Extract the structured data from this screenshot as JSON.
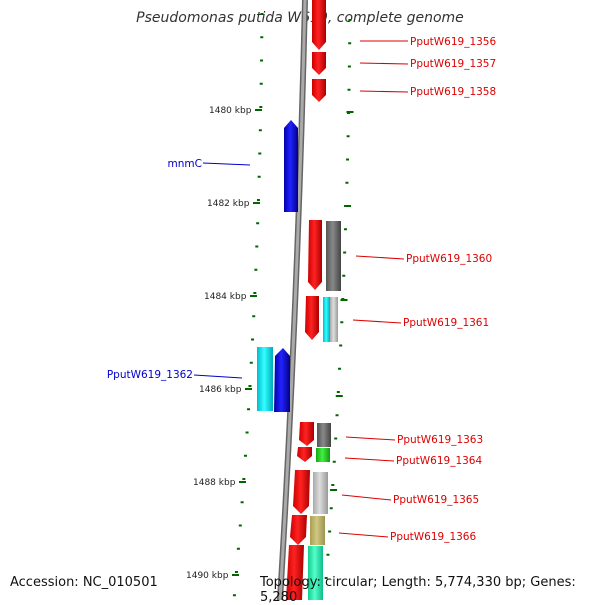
{
  "title": "Pseudomonas putida W619, complete genome",
  "footer": {
    "accession": "Accession: NC_010501",
    "summary": "Topology: circular; Length: 5,774,330 bp; Genes: 5,280"
  },
  "colors": {
    "backbone": "#888888",
    "red": "#ff0000",
    "blue": "#0000ee",
    "cyan": "#00e5ee",
    "dark_gray": "#666666",
    "light_gray": "#bbbbbb",
    "green": "#22cc22",
    "khaki": "#bdb76b",
    "aquamarine": "#22eeaa",
    "tick": "#006600",
    "label_red": "#dd0000",
    "label_blue": "#0000cc"
  },
  "scale_labels": [
    "1480 kbp",
    "1482 kbp",
    "1484 kbp",
    "1486 kbp",
    "1488 kbp",
    "1490 kbp"
  ],
  "gene_labels": [
    {
      "text": "PputW619_1356",
      "color": "red"
    },
    {
      "text": "PputW619_1357",
      "color": "red"
    },
    {
      "text": "PputW619_1358",
      "color": "red"
    },
    {
      "text": "mnmC",
      "color": "blue"
    },
    {
      "text": "PputW619_1360",
      "color": "red"
    },
    {
      "text": "PputW619_1361",
      "color": "red"
    },
    {
      "text": "PputW619_1362",
      "color": "blue"
    },
    {
      "text": "PputW619_1363",
      "color": "red"
    },
    {
      "text": "PputW619_1364",
      "color": "red"
    },
    {
      "text": "PputW619_1365",
      "color": "red"
    },
    {
      "text": "PputW619_1366",
      "color": "red"
    }
  ]
}
